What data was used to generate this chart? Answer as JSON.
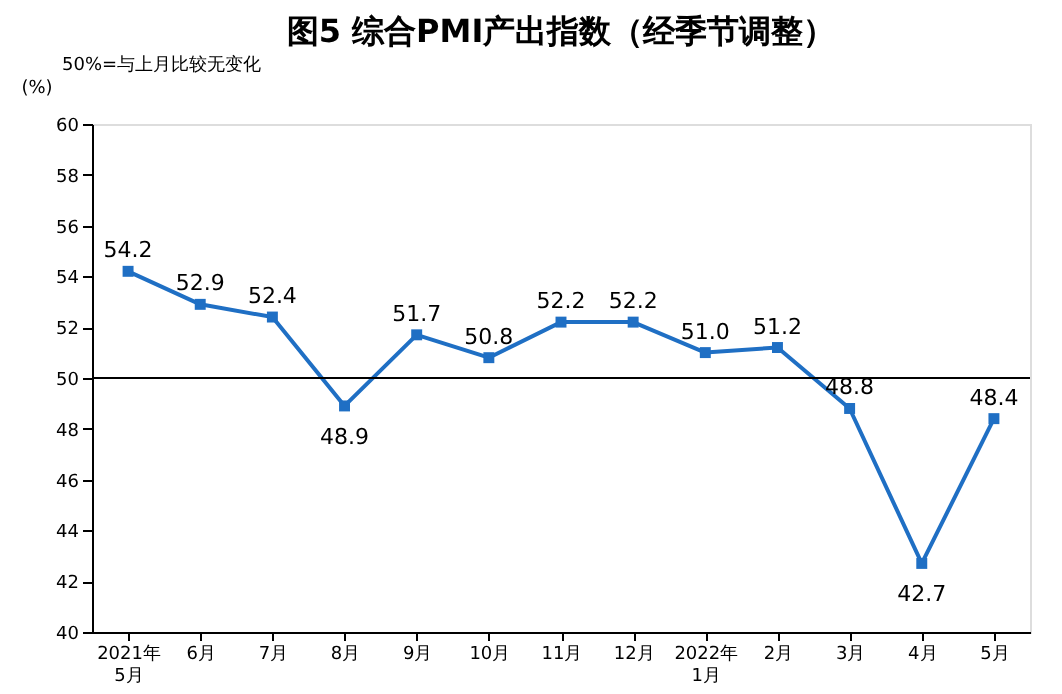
{
  "chart_data": {
    "type": "line",
    "title": "图5 综合PMI产出指数（经季节调整）",
    "ylabel": "(%)",
    "annotations": [
      "50%=与上月比较无变化"
    ],
    "categories": [
      "2021年\n5月",
      "6月",
      "7月",
      "8月",
      "9月",
      "10月",
      "11月",
      "12月",
      "2022年\n1月",
      "2月",
      "3月",
      "4月",
      "5月"
    ],
    "series": [
      {
        "color": "#1f6fc4",
        "values": [
          54.2,
          52.9,
          52.4,
          48.9,
          51.7,
          50.8,
          52.2,
          52.2,
          51.0,
          51.2,
          48.8,
          42.7,
          48.4
        ],
        "value_labels": [
          "54.2",
          "52.9",
          "52.4",
          "48.9",
          "51.7",
          "50.8",
          "52.2",
          "52.2",
          "51.0",
          "51.2",
          "48.8",
          "42.7",
          "48.4"
        ]
      }
    ],
    "ylim": [
      40,
      60
    ],
    "yticks": [
      40,
      42,
      44,
      46,
      48,
      50,
      52,
      54,
      56,
      58,
      60
    ],
    "ref_lines": [
      {
        "axis": "y",
        "value": 50,
        "color": "#000000"
      }
    ],
    "data_labels": true,
    "marker": "square",
    "line_style": "solid",
    "grid": false,
    "legend": false
  }
}
